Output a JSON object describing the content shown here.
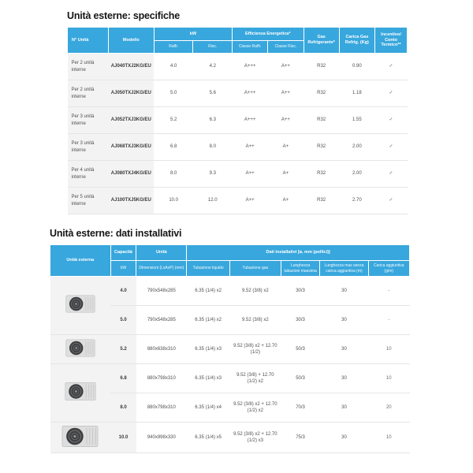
{
  "colors": {
    "header_blue": "#38a7dd",
    "light_cell_gray": "#f3f3f3",
    "row_border": "#e5e5e5",
    "title_text": "#161616"
  },
  "specs": {
    "title": "Unità esterne: specifiche",
    "header": {
      "col_unita": "N° Unità",
      "col_modello": "Modello",
      "group_kw": "kW",
      "sub_raffr": "Raffr.",
      "sub_risc": "Risc.",
      "group_eff": "Efficienza Energetica*",
      "sub_classe_raffr": "Classe Raffr.",
      "sub_classe_risc": "Classe Risc.",
      "col_gas": "Gas Refrigerante*",
      "col_carica": "Carica Gas Refrig. (Kg)",
      "col_incentivo": "Incentivo/ Conto Termico**"
    },
    "rows": [
      {
        "unita": "Per 2 unità interne",
        "modello": "AJ040TXJ2KG/EU",
        "raffr": "4.0",
        "risc": "4.2",
        "classe_raffr": "A+++",
        "classe_risc": "A++",
        "gas": "R32",
        "carica": "0.90",
        "incentivo": "✓"
      },
      {
        "unita": "Per 2 unità interne",
        "modello": "AJ050TXJ2KG/EU",
        "raffr": "5.0",
        "risc": "5.6",
        "classe_raffr": "A+++",
        "classe_risc": "A++",
        "gas": "R32",
        "carica": "1.18",
        "incentivo": "✓"
      },
      {
        "unita": "Per 3 unità interne",
        "modello": "AJ052TXJ3KG/EU",
        "raffr": "5.2",
        "risc": "6.3",
        "classe_raffr": "A+++",
        "classe_risc": "A++",
        "gas": "R32",
        "carica": "1.55",
        "incentivo": "✓"
      },
      {
        "unita": "Per 3 unità interne",
        "modello": "AJ068TXJ3KG/EU",
        "raffr": "6.8",
        "risc": "8.0",
        "classe_raffr": "A++",
        "classe_risc": "A+",
        "gas": "R32",
        "carica": "2.00",
        "incentivo": "✓"
      },
      {
        "unita": "Per 4 unità interne",
        "modello": "AJ080TXJ4KG/EU",
        "raffr": "8.0",
        "risc": "9.3",
        "classe_raffr": "A++",
        "classe_risc": "A+",
        "gas": "R32",
        "carica": "2.00",
        "incentivo": "✓"
      },
      {
        "unita": "Per 5 unità interne",
        "modello": "AJ100TXJ5KG/EU",
        "raffr": "10.0",
        "risc": "12.0",
        "classe_raffr": "A++",
        "classe_risc": "A+",
        "gas": "R32",
        "carica": "2.70",
        "incentivo": "✓"
      }
    ]
  },
  "install": {
    "title": "Unità esterne: dati installativi",
    "header": {
      "col_unita_esterna": "Unità esterna",
      "col_capacita_top": "Capacità",
      "sub_kw": "kW",
      "col_unita_top": "Unità",
      "sub_dimensioni": "Dimensioni (LxAxP) (mm)",
      "group_dati": "Dati installativi [ø, mm (pollici)]",
      "sub_liquido": "Tubazione liquido",
      "sub_gas": "Tubazione gas",
      "sub_lunghezza": "Lunghezza tubazioni massima",
      "sub_lunghezza_max": "Lunghezza max senza carica aggiuntiva (m)",
      "sub_carica": "Carica aggiuntiva (g/m)"
    },
    "rows": [
      {
        "capacita": "4.0",
        "dim": "790x548x285",
        "liquido": "6.35 (1/4) x2",
        "gas": "9.52 (3/8) x2",
        "lunghezza": "30/3",
        "max_senza": "30",
        "carica_agg": "-"
      },
      {
        "capacita": "5.0",
        "dim": "790x548x285",
        "liquido": "6.35 (1/4) x2",
        "gas": "9.52 (3/8) x2",
        "lunghezza": "30/3",
        "max_senza": "30",
        "carica_agg": "-"
      },
      {
        "capacita": "5.2",
        "dim": "880x638x310",
        "liquido": "6.35 (1/4) x3",
        "gas": "9.52 (3/8) x2 + 12.70 (1/2)",
        "lunghezza": "50/3",
        "max_senza": "30",
        "carica_agg": "10"
      },
      {
        "capacita": "6.8",
        "dim": "880x798x310",
        "liquido": "6.35 (1/4) x3",
        "gas": "9.52 (3/8) + 12.70 (1/2) x2",
        "lunghezza": "50/3",
        "max_senza": "30",
        "carica_agg": "10"
      },
      {
        "capacita": "8.0",
        "dim": "880x798x310",
        "liquido": "6.35 (1/4) x4",
        "gas": "9.52 (3/8) x2 + 12.70 (1/2) x2",
        "lunghezza": "70/3",
        "max_senza": "30",
        "carica_agg": "20"
      },
      {
        "capacita": "10.0",
        "dim": "940x998x330",
        "liquido": "6.35 (1/4) x5",
        "gas": "9.52 (3/8) x2 + 12.70 (1/2) x3",
        "lunghezza": "75/3",
        "max_senza": "30",
        "carica_agg": "10"
      }
    ],
    "unit_images": [
      {
        "start": 0,
        "span": 2,
        "variant": "flat"
      },
      {
        "start": 2,
        "span": 1,
        "variant": "mid"
      },
      {
        "start": 3,
        "span": 2,
        "variant": "tall"
      },
      {
        "start": 5,
        "span": 1,
        "variant": "large"
      }
    ]
  }
}
